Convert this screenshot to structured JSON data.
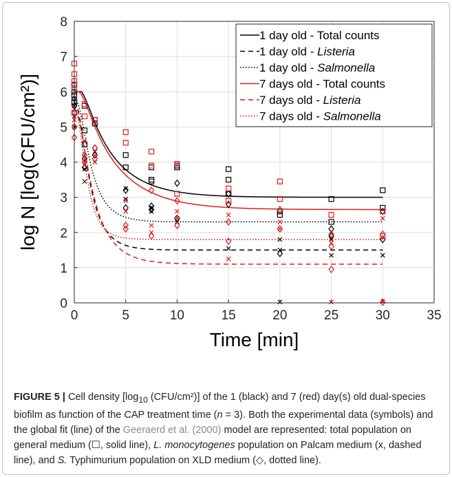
{
  "chart_data": {
    "type": "scatter",
    "xlabel": "Time [min]",
    "ylabel": "log N [log(CFU/cm²)]",
    "xlim": [
      0,
      35
    ],
    "ylim": [
      0,
      8
    ],
    "xticks": [
      0,
      5,
      10,
      15,
      20,
      25,
      30,
      35
    ],
    "yticks": [
      0,
      1,
      2,
      3,
      4,
      5,
      6,
      7,
      8
    ],
    "grid": true,
    "legend_position": "top-right",
    "colors": {
      "black": "#000000",
      "red": "#e41a1c"
    },
    "series": [
      {
        "name": "1 day old - Total counts",
        "color": "#000000",
        "line_style": "solid",
        "marker": "square",
        "fit": {
          "n0": 6.0,
          "nres": 3.0,
          "kmax": 0.32,
          "shoulder": 0.8
        },
        "points": [
          [
            0,
            6.2
          ],
          [
            0,
            5.9
          ],
          [
            0,
            5.7
          ],
          [
            0,
            6.0
          ],
          [
            1,
            4.5
          ],
          [
            1,
            5.6
          ],
          [
            1,
            4.9
          ],
          [
            2,
            5.2
          ],
          [
            2,
            5.1
          ],
          [
            5,
            4.2
          ],
          [
            5,
            3.85
          ],
          [
            7.5,
            3.85
          ],
          [
            7.5,
            3.5
          ],
          [
            7.5,
            3.45
          ],
          [
            10,
            3.85
          ],
          [
            10,
            3.9
          ],
          [
            15,
            3.8
          ],
          [
            15,
            3.5
          ],
          [
            15,
            3.1
          ],
          [
            20,
            2.6
          ],
          [
            20,
            2.5
          ],
          [
            25,
            2.95
          ],
          [
            25,
            2.3
          ],
          [
            30,
            3.2
          ],
          [
            30,
            2.7
          ]
        ]
      },
      {
        "name": "1 day old - Listeria",
        "name_italic": "Listeria",
        "color": "#000000",
        "line_style": "dashed",
        "marker": "x",
        "fit": {
          "n0": 5.7,
          "nres": 1.5,
          "kmax": 0.72,
          "shoulder": 0.2
        },
        "points": [
          [
            0,
            5.6
          ],
          [
            0,
            5.3
          ],
          [
            0,
            5.0
          ],
          [
            1,
            3.45
          ],
          [
            1,
            3.8
          ],
          [
            2,
            4.0
          ],
          [
            2,
            4.3
          ],
          [
            5,
            3.25
          ],
          [
            5,
            2.95
          ],
          [
            7.5,
            2.6
          ],
          [
            7.5,
            2.7
          ],
          [
            10,
            2.4
          ],
          [
            10,
            2.3
          ],
          [
            15,
            1.55
          ],
          [
            20,
            1.5
          ],
          [
            20,
            1.8
          ],
          [
            20,
            0.02
          ],
          [
            25,
            1.35
          ],
          [
            25,
            1.8
          ],
          [
            30,
            1.35
          ]
        ]
      },
      {
        "name": "1 day old - Salmonella",
        "name_italic": "Salmonella",
        "color": "#000000",
        "line_style": "dotted",
        "marker": "diamond",
        "fit": {
          "n0": 5.8,
          "nres": 2.3,
          "kmax": 0.7,
          "shoulder": 0.3
        },
        "points": [
          [
            0,
            5.8
          ],
          [
            0,
            5.6
          ],
          [
            1,
            4.1
          ],
          [
            1,
            3.85
          ],
          [
            2,
            4.4
          ],
          [
            2,
            4.2
          ],
          [
            5,
            3.2
          ],
          [
            5,
            2.7
          ],
          [
            7.5,
            2.75
          ],
          [
            7.5,
            2.65
          ],
          [
            10,
            3.4
          ],
          [
            10,
            2.4
          ],
          [
            15,
            3.1
          ],
          [
            15,
            2.8
          ],
          [
            20,
            1.4
          ],
          [
            25,
            2.1
          ],
          [
            25,
            1.9
          ],
          [
            30,
            1.8
          ],
          [
            30,
            2.6
          ]
        ]
      },
      {
        "name": "7 days old - Total counts",
        "color": "#e41a1c",
        "line_style": "solid",
        "marker": "square",
        "fit": {
          "n0": 6.0,
          "nres": 2.65,
          "kmax": 0.28,
          "shoulder": 0.6
        },
        "points": [
          [
            0,
            6.8
          ],
          [
            0,
            6.5
          ],
          [
            0,
            6.3
          ],
          [
            0,
            6.1
          ],
          [
            0,
            5.4
          ],
          [
            1,
            5.3
          ],
          [
            1,
            5.65
          ],
          [
            2,
            5.2
          ],
          [
            5,
            4.85
          ],
          [
            5,
            4.55
          ],
          [
            7.5,
            4.3
          ],
          [
            7.5,
            3.9
          ],
          [
            10,
            3.95
          ],
          [
            10,
            3.1
          ],
          [
            15,
            3.25
          ],
          [
            15,
            2.9
          ],
          [
            20,
            3.45
          ],
          [
            20,
            2.95
          ],
          [
            25,
            2.5
          ],
          [
            30,
            2.6
          ],
          [
            30,
            1.9
          ]
        ]
      },
      {
        "name": "7 days old - Listeria",
        "name_italic": "Listeria",
        "color": "#e41a1c",
        "line_style": "dashed",
        "marker": "x",
        "fit": {
          "n0": 5.5,
          "nres": 1.1,
          "kmax": 0.55,
          "shoulder": 0.2
        },
        "points": [
          [
            0,
            5.5
          ],
          [
            0,
            5.2
          ],
          [
            1,
            4.6
          ],
          [
            1,
            4.0
          ],
          [
            2,
            4.2
          ],
          [
            2,
            4.0
          ],
          [
            5,
            2.9
          ],
          [
            5,
            2.6
          ],
          [
            7.5,
            2.2
          ],
          [
            7.5,
            2.0
          ],
          [
            10,
            2.6
          ],
          [
            10,
            2.4
          ],
          [
            15,
            1.25
          ],
          [
            15,
            2.5
          ],
          [
            20,
            2.3
          ],
          [
            20,
            2.1
          ],
          [
            25,
            1.7
          ],
          [
            25,
            0.02
          ],
          [
            30,
            2.4
          ],
          [
            30,
            0.05
          ]
        ]
      },
      {
        "name": "7 days old - Salmonella",
        "name_italic": "Salmonella",
        "color": "#e41a1c",
        "line_style": "dotted",
        "marker": "diamond",
        "fit": {
          "n0": 5.5,
          "nres": 1.8,
          "kmax": 0.95,
          "shoulder": 0.2
        },
        "points": [
          [
            0,
            5.4
          ],
          [
            0,
            5.0
          ],
          [
            0,
            4.7
          ],
          [
            1,
            4.2
          ],
          [
            1,
            4.0
          ],
          [
            2,
            4.4
          ],
          [
            2,
            4.1
          ],
          [
            5,
            2.2
          ],
          [
            5,
            2.1
          ],
          [
            7.5,
            3.2
          ],
          [
            7.5,
            1.9
          ],
          [
            10,
            2.9
          ],
          [
            10,
            2.2
          ],
          [
            15,
            2.3
          ],
          [
            15,
            1.75
          ],
          [
            20,
            2.1
          ],
          [
            20,
            2.65
          ],
          [
            25,
            0.95
          ],
          [
            25,
            1.95
          ],
          [
            25,
            1.6
          ],
          [
            30,
            1.95
          ],
          [
            30,
            0.02
          ]
        ]
      }
    ]
  },
  "caption": {
    "label": "FIGURE 5 |",
    "s1": " Cell density [log",
    "s1_sub": "10",
    "s2": " (CFU/cm²)] of the 1 (black) and 7 (red) day(s) old dual-species biofilm as function of the CAP treatment time (",
    "s2_italic": "n",
    "s3": " = 3). Both the experimental data (symbols) and the global fit (line) of the ",
    "ref": "Geeraerd et al. (2000)",
    "s4": " model are represented: total population on general medium (☐, solid line), ",
    "s4_italic": "L. monocytogenes",
    "s5": " population on Palcam medium (x, dashed line), and ",
    "s5_italic": "S.",
    "s6": " Typhimurium population on XLD medium (◇, dotted line)."
  }
}
